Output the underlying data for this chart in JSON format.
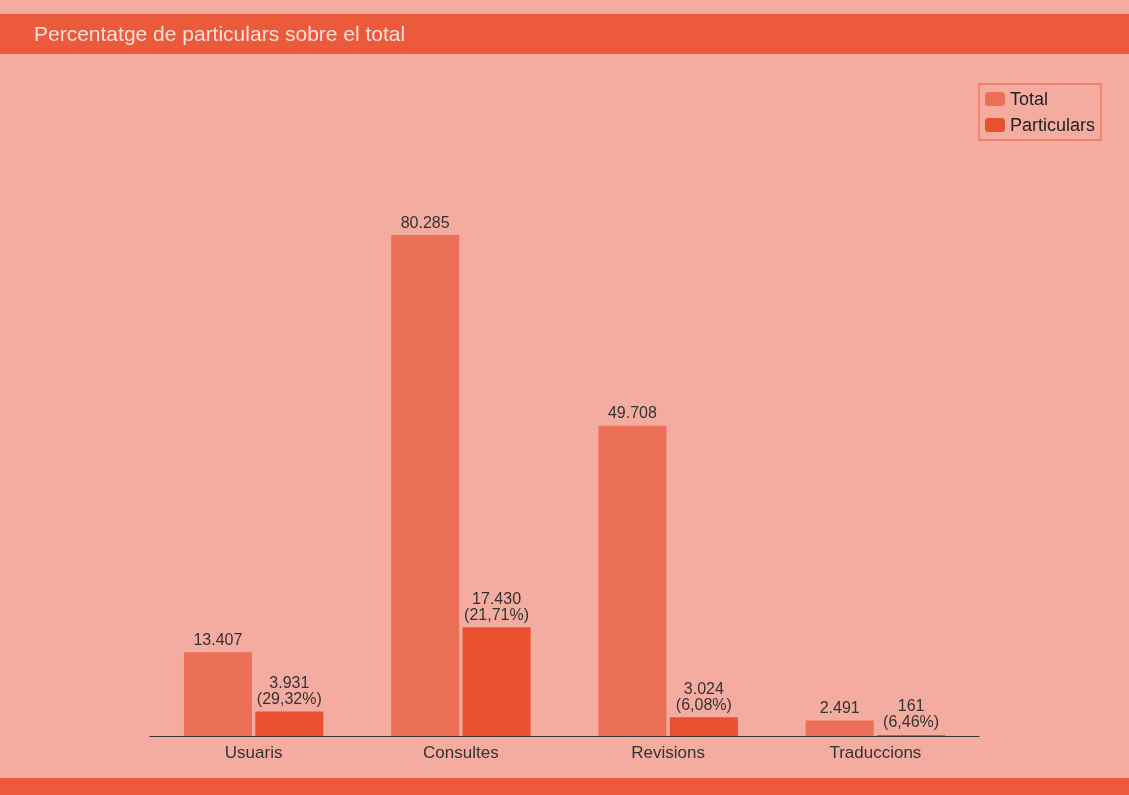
{
  "chart_data": {
    "type": "bar",
    "title": "Percentatge de particulars sobre el total",
    "categories": [
      "Usuaris",
      "Consultes",
      "Revisions",
      "Traduccions"
    ],
    "series": [
      {
        "name": "Total",
        "color": "#ec6f58",
        "values": [
          13407,
          80285,
          49708,
          2491
        ],
        "value_labels": [
          "13.407",
          "80.285",
          "49.708",
          "2.491"
        ]
      },
      {
        "name": "Particulars",
        "color": "#e8502f",
        "values": [
          3931,
          17430,
          3024,
          161
        ],
        "value_labels": [
          "3.931\n(29,32%)",
          "17.430\n(21,71%)",
          "3.024\n(6,08%)",
          "161\n(6,46%)"
        ]
      }
    ],
    "legend": "top right"
  }
}
